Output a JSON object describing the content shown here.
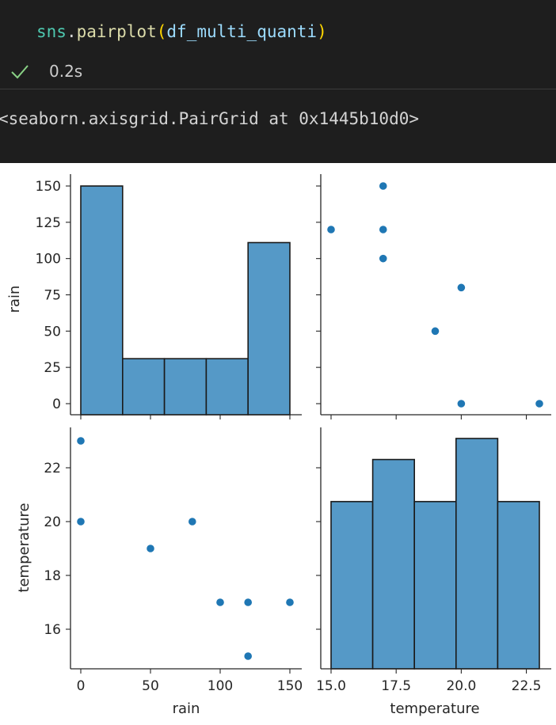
{
  "notebook": {
    "code": {
      "module": "sns",
      "dot": ".",
      "function": "pairplot",
      "open_paren": "(",
      "argument": "df_multi_quanti",
      "close_paren": ")"
    },
    "status": {
      "time": "0.2s",
      "icon": "check-icon",
      "color": "#89d185"
    },
    "output_text": "<seaborn.axisgrid.PairGrid at 0x1445b10d0>"
  },
  "chart_data": {
    "type": "pairplot",
    "variables": [
      "rain",
      "temperature"
    ],
    "xlabels": [
      "rain",
      "temperature"
    ],
    "ylabels": [
      "rain",
      "temperature"
    ],
    "points": {
      "rain": [
        0,
        0,
        50,
        80,
        100,
        120,
        120,
        150
      ],
      "temperature": [
        23,
        20,
        19,
        20,
        17,
        17,
        15,
        17
      ]
    },
    "hist_rain": {
      "bin_edges": [
        0,
        30,
        60,
        90,
        120,
        150
      ],
      "counts": [
        150,
        31,
        31,
        31,
        111
      ]
    },
    "hist_temperature": {
      "bin_edges": [
        15,
        16.6,
        18.2,
        19.8,
        21.4,
        23
      ],
      "counts": [
        16.7,
        20.9,
        16.7,
        23,
        16.7
      ]
    },
    "rain_ticks": [
      "0",
      "25",
      "50",
      "75",
      "100",
      "125",
      "150"
    ],
    "temperature_ticks": [
      "16",
      "18",
      "20",
      "22"
    ],
    "rain_xticks": [
      "0",
      "50",
      "100",
      "150"
    ],
    "temperature_xticks": [
      "15.0",
      "17.5",
      "20.0",
      "22.5"
    ],
    "colors": {
      "fill": "#5599c7",
      "edge": "#1a1a1a",
      "marker": "#1f77b4"
    }
  }
}
